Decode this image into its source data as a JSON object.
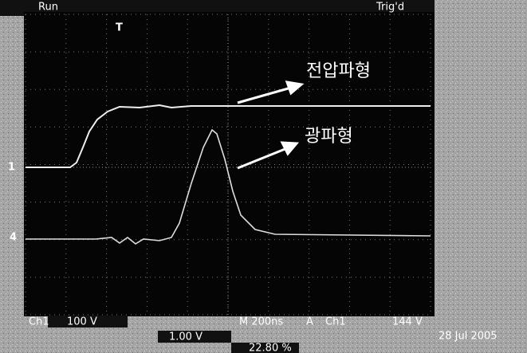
{
  "status": {
    "run": "Run",
    "trigger": "Trig'd"
  },
  "annotations": {
    "voltage": "전압파형",
    "optical": "광파형"
  },
  "markers": {
    "trigger": "T",
    "ch1": "1",
    "ch4": "4"
  },
  "readout": {
    "ch1_label": "Ch1",
    "ch1_scale": "100 V",
    "ch4_scale": "1.00 V",
    "timebase": "M 200ns",
    "trigger_label": "A",
    "trigger_source": "Ch1",
    "trigger_level": "144 V",
    "date": "28 Jul 2005",
    "position": "22.80 %"
  }
}
